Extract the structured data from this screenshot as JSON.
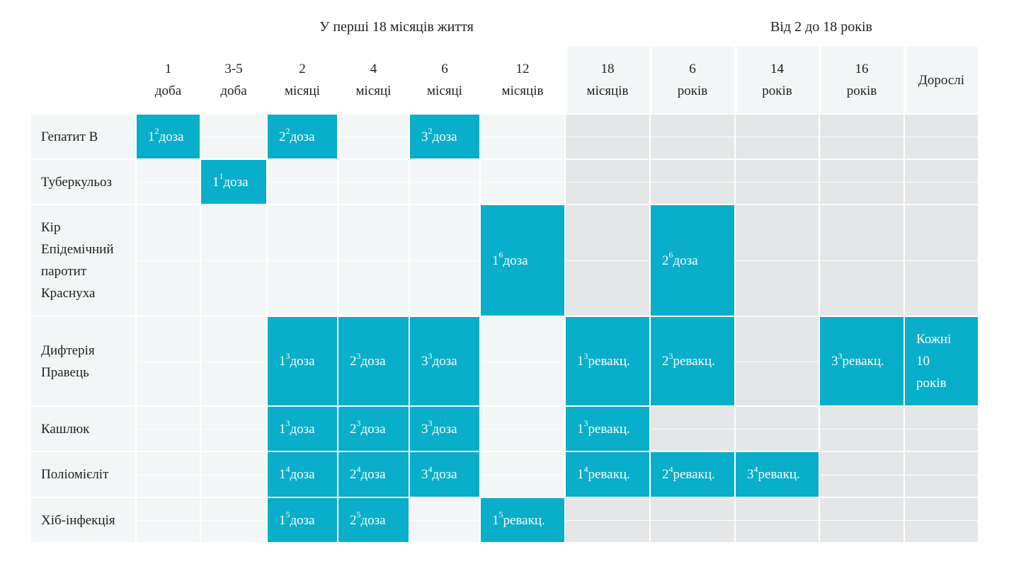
{
  "groups": {
    "first": "У перші 18 місяців життя",
    "second": "Від 2 до 18 років"
  },
  "columns": [
    {
      "l1": "1",
      "l2": "доба"
    },
    {
      "l1": "3-5",
      "l2": "доба"
    },
    {
      "l1": "2",
      "l2": "місяці"
    },
    {
      "l1": "4",
      "l2": "місяці"
    },
    {
      "l1": "6",
      "l2": "місяці"
    },
    {
      "l1": "12",
      "l2": "місяців"
    },
    {
      "l1": "18",
      "l2": "місяців"
    },
    {
      "l1": "6",
      "l2": "років"
    },
    {
      "l1": "14",
      "l2": "років"
    },
    {
      "l1": "16",
      "l2": "років"
    },
    {
      "l1": "Дорослі",
      "l2": ""
    }
  ],
  "rows": [
    {
      "label": [
        "Гепатит В"
      ]
    },
    {
      "label": [
        "Туберкульоз"
      ]
    },
    {
      "label": [
        "Кір",
        "Епідемічний",
        "паротит",
        "Краснуха"
      ]
    },
    {
      "label": [
        "Дифтерія",
        "Правець"
      ]
    },
    {
      "label": [
        "Кашлюк"
      ]
    },
    {
      "label": [
        "Поліомієліт"
      ]
    },
    {
      "label": [
        "Хіб-інфекція"
      ]
    }
  ],
  "doses": [
    {
      "row": 0,
      "col": 0,
      "n": "1",
      "sup": "2",
      "text": "доза"
    },
    {
      "row": 0,
      "col": 2,
      "n": "2",
      "sup": "2",
      "text": "доза"
    },
    {
      "row": 0,
      "col": 4,
      "n": "3",
      "sup": "2",
      "text": "доза"
    },
    {
      "row": 1,
      "col": 1,
      "n": "1",
      "sup": "1",
      "text": "доза"
    },
    {
      "row": 2,
      "col": 5,
      "n": "1",
      "sup": "6",
      "text": "доза"
    },
    {
      "row": 2,
      "col": 7,
      "n": "2",
      "sup": "6",
      "text": "доза"
    },
    {
      "row": 3,
      "col": 2,
      "n": "1",
      "sup": "3",
      "text": "доза"
    },
    {
      "row": 3,
      "col": 3,
      "n": "2",
      "sup": "3",
      "text": "доза"
    },
    {
      "row": 3,
      "col": 4,
      "n": "3",
      "sup": "3",
      "text": "доза"
    },
    {
      "row": 3,
      "col": 6,
      "n": "1",
      "sup": "3",
      "text": "ревакц."
    },
    {
      "row": 3,
      "col": 7,
      "n": "2",
      "sup": "3",
      "text": "ревакц."
    },
    {
      "row": 3,
      "col": 9,
      "n": "3",
      "sup": "3",
      "text": "ревакц."
    },
    {
      "row": 3,
      "col": 10,
      "lines": [
        "Кожні",
        "10",
        "років"
      ]
    },
    {
      "row": 4,
      "col": 2,
      "n": "1",
      "sup": "3",
      "text": "доза"
    },
    {
      "row": 4,
      "col": 3,
      "n": "2",
      "sup": "3",
      "text": "доза"
    },
    {
      "row": 4,
      "col": 4,
      "n": "3",
      "sup": "3",
      "text": "доза"
    },
    {
      "row": 4,
      "col": 6,
      "n": "1",
      "sup": "3",
      "text": "ревакц."
    },
    {
      "row": 5,
      "col": 2,
      "n": "1",
      "sup": "4",
      "text": "доза"
    },
    {
      "row": 5,
      "col": 3,
      "n": "2",
      "sup": "4",
      "text": "доза"
    },
    {
      "row": 5,
      "col": 4,
      "n": "3",
      "sup": "4",
      "text": "доза"
    },
    {
      "row": 5,
      "col": 6,
      "n": "1",
      "sup": "4",
      "text": "ревакц."
    },
    {
      "row": 5,
      "col": 7,
      "n": "2",
      "sup": "4",
      "text": "ревакц."
    },
    {
      "row": 5,
      "col": 8,
      "n": "3",
      "sup": "4",
      "text": "ревакц."
    },
    {
      "row": 6,
      "col": 2,
      "n": "1",
      "sup": "5",
      "text": "доза"
    },
    {
      "row": 6,
      "col": 3,
      "n": "2",
      "sup": "5",
      "text": "доза"
    },
    {
      "row": 6,
      "col": 5,
      "n": "1",
      "sup": "5",
      "text": "ревакц."
    }
  ],
  "colors": {
    "dose": "#08aeca",
    "cell_light": "#f3f6f6",
    "cell_dark": "#e4e6e7"
  }
}
